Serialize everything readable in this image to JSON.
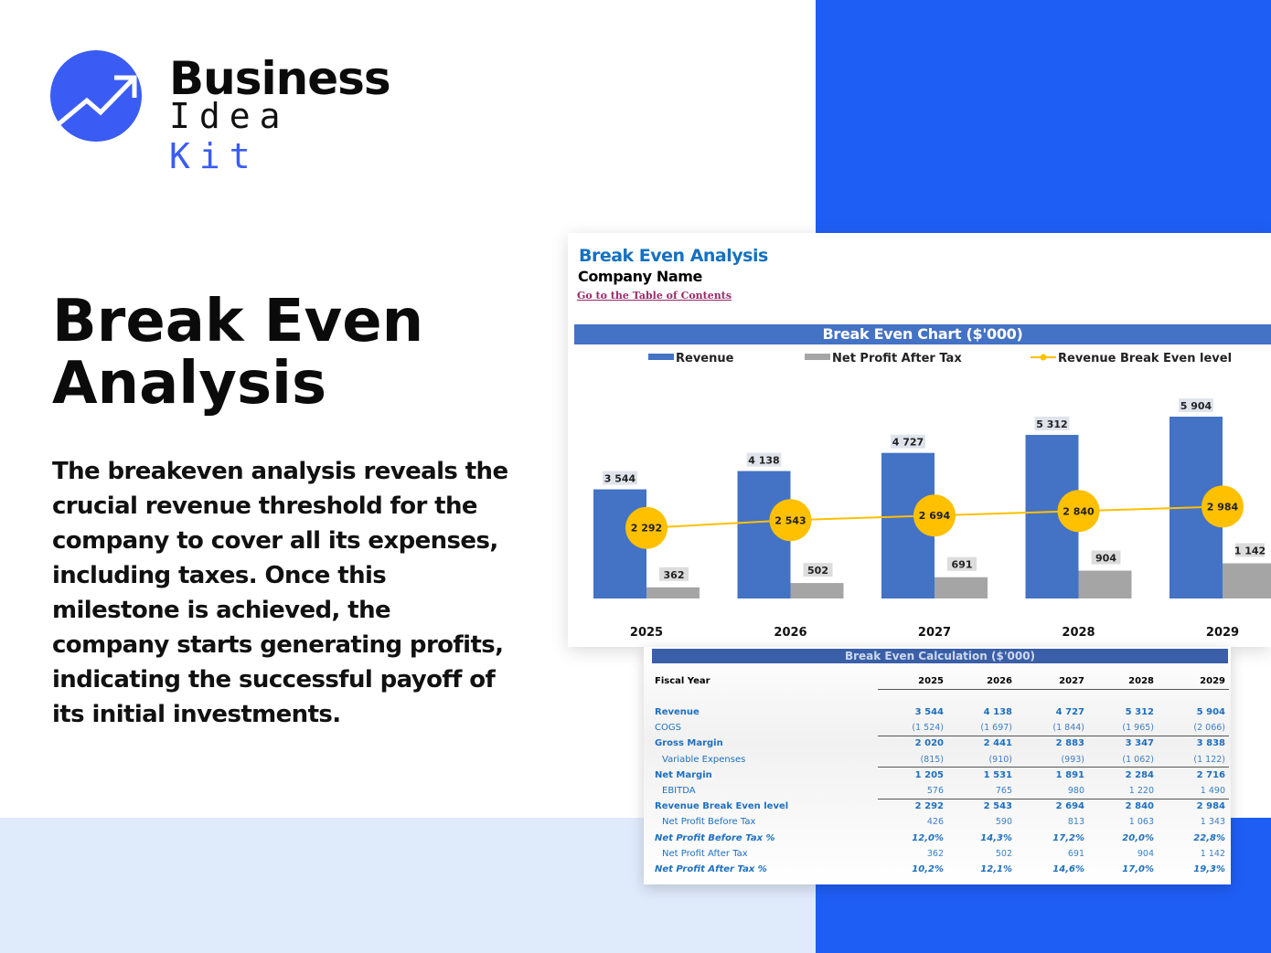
{
  "brand": {
    "line1": "Business",
    "line2a": "Idea",
    "line2b": "Kit",
    "accent": "#3a5cf5"
  },
  "hero": {
    "title": "Break Even Analysis",
    "description": "The breakeven analysis reveals the crucial revenue threshold for the company to cover all its expenses, including taxes. Once this milestone is achieved, the company starts generating profits, indicating the successful payoff of its initial investments."
  },
  "sheet": {
    "title": "Break Even Analysis",
    "company": "Company Name",
    "toc_link": "Go to the Table of Contents"
  },
  "chart_data": {
    "type": "bar",
    "title": "Break Even Chart ($'000)",
    "categories": [
      "2025",
      "2026",
      "2027",
      "2028",
      "2029"
    ],
    "series": [
      {
        "name": "Revenue",
        "type": "bar",
        "color": "#4472c4",
        "values": [
          3544,
          4138,
          4727,
          5312,
          5904
        ],
        "labels": [
          "3 544",
          "4 138",
          "4 727",
          "5 312",
          "5 904"
        ]
      },
      {
        "name": "Net Profit After Tax",
        "type": "bar",
        "color": "#a5a5a5",
        "values": [
          362,
          502,
          691,
          904,
          1142
        ],
        "labels": [
          "362",
          "502",
          "691",
          "904",
          "1 142"
        ]
      },
      {
        "name": "Revenue Break Even level",
        "type": "line",
        "color": "#ffc000",
        "values": [
          2292,
          2543,
          2694,
          2840,
          2984
        ],
        "labels": [
          "2 292",
          "2 543",
          "2 694",
          "2 840",
          "2 984"
        ]
      }
    ],
    "legend": "top",
    "grid": false,
    "ylim": [
      0,
      5904
    ]
  },
  "table": {
    "title": "Break Even Calculation ($'000)",
    "header": "Fiscal Year",
    "years": [
      "2025",
      "2026",
      "2027",
      "2028",
      "2029"
    ],
    "rows": [
      {
        "label": "Revenue",
        "style": "b",
        "values": [
          "3 544",
          "4 138",
          "4 727",
          "5 312",
          "5 904"
        ]
      },
      {
        "label": "COGS",
        "style": "",
        "values": [
          "(1 524)",
          "(1 697)",
          "(1 844)",
          "(1 965)",
          "(2 066)"
        ]
      },
      {
        "label": "Gross Margin",
        "style": "b",
        "values": [
          "2 020",
          "2 441",
          "2 883",
          "3 347",
          "3 838"
        ]
      },
      {
        "label": "Variable Expenses",
        "style": "sub",
        "values": [
          "(815)",
          "(910)",
          "(993)",
          "(1 062)",
          "(1 122)"
        ]
      },
      {
        "label": "Net Margin",
        "style": "b",
        "values": [
          "1 205",
          "1 531",
          "1 891",
          "2 284",
          "2 716"
        ]
      },
      {
        "label": "EBITDA",
        "style": "sub",
        "values": [
          "576",
          "765",
          "980",
          "1 220",
          "1 490"
        ]
      },
      {
        "label": "Revenue Break Even level",
        "style": "b",
        "values": [
          "2 292",
          "2 543",
          "2 694",
          "2 840",
          "2 984"
        ]
      },
      {
        "label": "Net Profit Before Tax",
        "style": "sub",
        "values": [
          "426",
          "590",
          "813",
          "1 063",
          "1 343"
        ]
      },
      {
        "label": "Net Profit Before Tax %",
        "style": "bi",
        "values": [
          "12,0%",
          "14,3%",
          "17,2%",
          "20,0%",
          "22,8%"
        ]
      },
      {
        "label": "Net Profit After Tax",
        "style": "sub",
        "values": [
          "362",
          "502",
          "691",
          "904",
          "1 142"
        ]
      },
      {
        "label": "Net Profit After Tax %",
        "style": "bi",
        "values": [
          "10,2%",
          "12,1%",
          "14,6%",
          "17,0%",
          "19,3%"
        ]
      }
    ]
  }
}
